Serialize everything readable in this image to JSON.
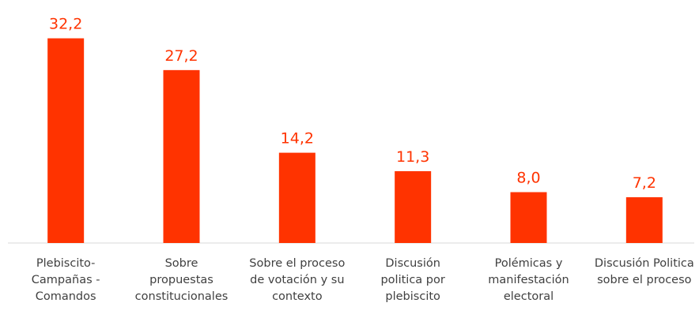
{
  "chart_data": {
    "type": "bar",
    "categories": [
      "Plebiscito-Campañas - Comandos",
      "Sobre propuestas constitucionales",
      "Sobre el proceso de votación y su contexto",
      "Discusión politica por plebiscito",
      "Polémicas y manifestación electoral",
      "Discusión Politica sobre el proceso"
    ],
    "values": [
      32.2,
      27.2,
      14.2,
      11.3,
      8.0,
      7.2
    ],
    "value_labels": [
      "32,2",
      "27,2",
      "14,2",
      "11,3",
      "8,0",
      "7,2"
    ],
    "color": "#ff3300",
    "ylim": [
      0,
      35
    ]
  }
}
